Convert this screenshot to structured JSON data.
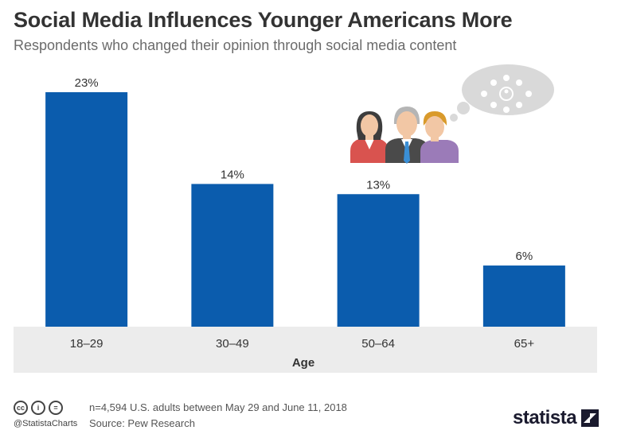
{
  "header": {
    "title": "Social Media Influences Younger Americans More",
    "subtitle": "Respondents who changed their opinion through social media content"
  },
  "chart_data": {
    "type": "bar",
    "categories": [
      "18–29",
      "30–49",
      "50–64",
      "65+"
    ],
    "values": [
      23,
      14,
      13,
      6
    ],
    "value_labels": [
      "23%",
      "14%",
      "13%",
      "6%"
    ],
    "xlabel": "Age",
    "ylabel": "",
    "ylim": [
      0,
      23
    ],
    "grid": false,
    "bar_color": "#0b5cad",
    "axis_band_color": "#ececec"
  },
  "illustration": {
    "icons": [
      "woman-icon",
      "man-icon",
      "man-icon",
      "thought-bubble-icon",
      "network-icon"
    ]
  },
  "footer": {
    "license_icons": [
      "cc-icon",
      "by-icon",
      "nd-icon"
    ],
    "license_glyphs": [
      "cc",
      "i",
      "="
    ],
    "handle": "@StatistaCharts",
    "note": "n=4,594 U.S. adults between May 29 and June 11, 2018",
    "source": "Source: Pew Research",
    "brand": "statista"
  }
}
